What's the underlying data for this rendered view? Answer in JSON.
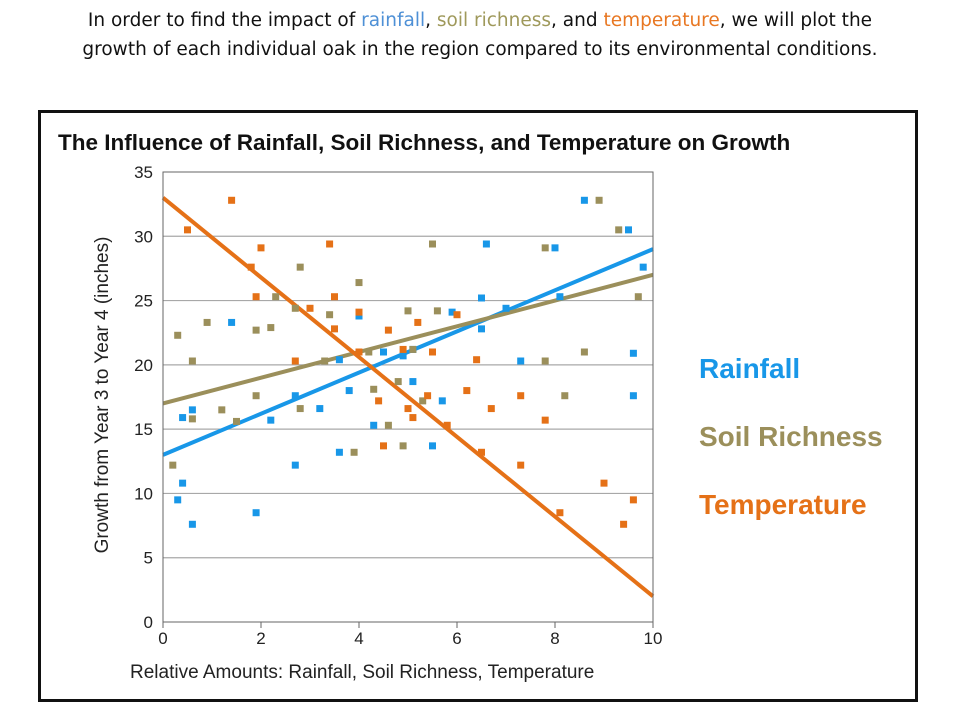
{
  "intro": {
    "p1": "In order to find the impact of ",
    "w_rain": "rainfall",
    "p2": ", ",
    "w_soil": "soil richness",
    "p3": ", and ",
    "w_temp": "temperature",
    "p4": ", we will plot the",
    "line2": "growth of each individual oak in the region compared to its environmental conditions."
  },
  "colors": {
    "rainfall": "#1897E8",
    "soil": "#9B8F5B",
    "temperature": "#E57117",
    "grid": "#A8A8A8"
  },
  "chart_data": {
    "type": "scatter",
    "title": "The Influence of Rainfall, Soil Richness, and Temperature on Growth",
    "xlabel": "Relative Amounts: Rainfall, Soil Richness, Temperature",
    "ylabel": "Growth from Year 3 to Year 4 (inches)",
    "xlim": [
      0,
      10
    ],
    "ylim": [
      0,
      35
    ],
    "xticks": [
      "0",
      "2",
      "4",
      "6",
      "8",
      "10"
    ],
    "yticks": [
      "0",
      "5",
      "10",
      "15",
      "20",
      "25",
      "30",
      "35"
    ],
    "grid": "horizontal",
    "legend_position": "right",
    "series": [
      {
        "name": "Rainfall",
        "color": "#1897E8",
        "trend": [
          [
            0,
            13
          ],
          [
            10,
            29
          ]
        ],
        "points": [
          [
            0.3,
            9.5
          ],
          [
            0.4,
            10.8
          ],
          [
            0.4,
            15.9
          ],
          [
            0.6,
            16.5
          ],
          [
            0.6,
            7.6
          ],
          [
            1.4,
            23.3
          ],
          [
            1.9,
            8.5
          ],
          [
            2.2,
            15.7
          ],
          [
            2.7,
            17.6
          ],
          [
            2.7,
            12.2
          ],
          [
            3.2,
            16.6
          ],
          [
            3.6,
            20.4
          ],
          [
            3.6,
            13.2
          ],
          [
            3.8,
            18.0
          ],
          [
            4.0,
            23.8
          ],
          [
            4.3,
            15.3
          ],
          [
            4.5,
            21.0
          ],
          [
            4.9,
            20.7
          ],
          [
            5.1,
            18.7
          ],
          [
            5.1,
            21.2
          ],
          [
            5.5,
            13.7
          ],
          [
            5.7,
            17.2
          ],
          [
            5.9,
            24.1
          ],
          [
            6.5,
            22.8
          ],
          [
            6.5,
            25.2
          ],
          [
            6.6,
            29.4
          ],
          [
            7.0,
            24.4
          ],
          [
            7.3,
            20.3
          ],
          [
            8.0,
            29.1
          ],
          [
            8.1,
            25.3
          ],
          [
            8.6,
            32.8
          ],
          [
            9.5,
            30.5
          ],
          [
            9.6,
            17.6
          ],
          [
            9.6,
            20.9
          ],
          [
            9.8,
            27.6
          ]
        ]
      },
      {
        "name": "Soil Richness",
        "color": "#9B8F5B",
        "trend": [
          [
            0,
            17
          ],
          [
            10,
            27
          ]
        ],
        "points": [
          [
            0.2,
            12.2
          ],
          [
            0.3,
            22.3
          ],
          [
            0.6,
            20.3
          ],
          [
            0.6,
            15.8
          ],
          [
            0.9,
            23.3
          ],
          [
            1.2,
            16.5
          ],
          [
            1.5,
            15.6
          ],
          [
            1.9,
            17.6
          ],
          [
            1.9,
            22.7
          ],
          [
            2.2,
            22.9
          ],
          [
            2.3,
            25.3
          ],
          [
            2.7,
            24.4
          ],
          [
            2.8,
            16.6
          ],
          [
            2.8,
            27.6
          ],
          [
            3.3,
            20.3
          ],
          [
            3.4,
            23.9
          ],
          [
            3.9,
            13.2
          ],
          [
            4.0,
            26.4
          ],
          [
            4.2,
            21.0
          ],
          [
            4.3,
            18.1
          ],
          [
            4.6,
            15.3
          ],
          [
            4.8,
            18.7
          ],
          [
            4.9,
            13.7
          ],
          [
            5.0,
            24.2
          ],
          [
            5.1,
            21.2
          ],
          [
            5.3,
            17.2
          ],
          [
            5.5,
            29.4
          ],
          [
            5.6,
            24.2
          ],
          [
            7.8,
            29.1
          ],
          [
            7.8,
            20.3
          ],
          [
            8.2,
            17.6
          ],
          [
            8.6,
            21.0
          ],
          [
            8.9,
            32.8
          ],
          [
            9.3,
            30.5
          ],
          [
            9.7,
            25.3
          ]
        ]
      },
      {
        "name": "Temperature",
        "color": "#E57117",
        "trend": [
          [
            0,
            33
          ],
          [
            10,
            2
          ]
        ],
        "points": [
          [
            0.5,
            30.5
          ],
          [
            1.4,
            32.8
          ],
          [
            1.8,
            27.6
          ],
          [
            1.9,
            25.3
          ],
          [
            2.0,
            29.1
          ],
          [
            2.7,
            20.3
          ],
          [
            3.0,
            24.4
          ],
          [
            3.4,
            29.4
          ],
          [
            3.5,
            25.3
          ],
          [
            3.5,
            22.8
          ],
          [
            4.0,
            24.1
          ],
          [
            4.0,
            21.0
          ],
          [
            4.4,
            17.2
          ],
          [
            4.5,
            13.7
          ],
          [
            4.6,
            22.7
          ],
          [
            4.9,
            21.2
          ],
          [
            5.0,
            16.6
          ],
          [
            5.1,
            15.9
          ],
          [
            5.2,
            23.3
          ],
          [
            5.4,
            17.6
          ],
          [
            5.5,
            21.0
          ],
          [
            5.8,
            15.3
          ],
          [
            6.0,
            23.9
          ],
          [
            6.2,
            18.0
          ],
          [
            6.4,
            20.4
          ],
          [
            6.5,
            13.2
          ],
          [
            6.7,
            16.6
          ],
          [
            7.3,
            12.2
          ],
          [
            7.3,
            17.6
          ],
          [
            7.8,
            15.7
          ],
          [
            8.1,
            8.5
          ],
          [
            9.0,
            10.8
          ],
          [
            9.4,
            7.6
          ],
          [
            9.6,
            9.5
          ]
        ]
      }
    ]
  }
}
